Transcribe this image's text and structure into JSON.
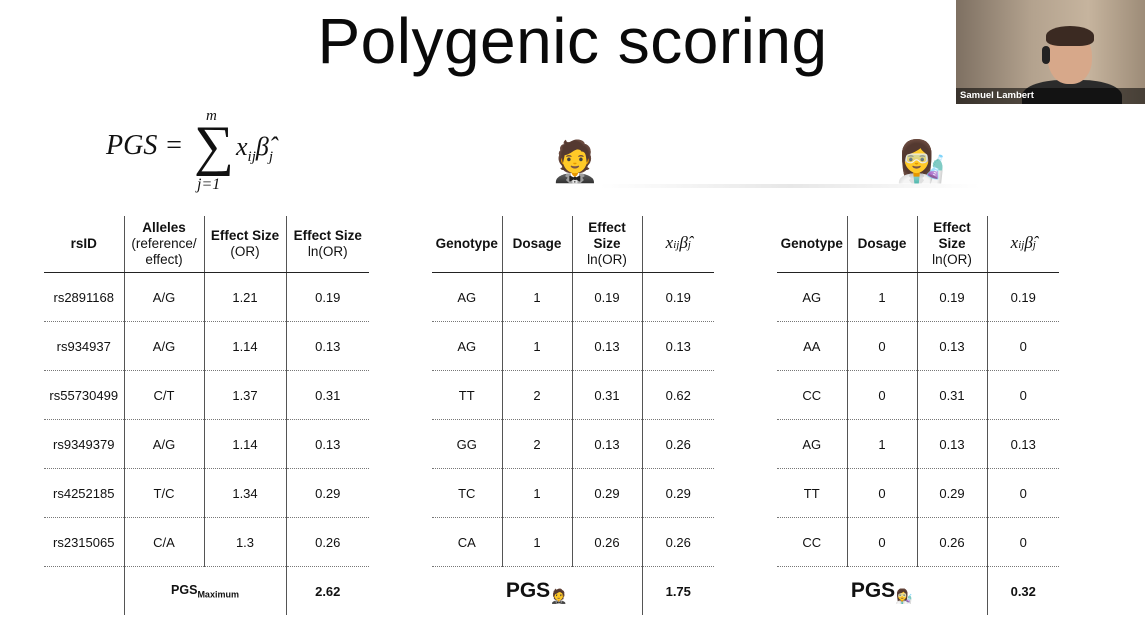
{
  "slide": {
    "title": "Polygenic scoring",
    "formula": {
      "lhs": "PGS =",
      "sum_upper": "m",
      "sum_lower": "j=1",
      "term_x": "x",
      "term_x_sub": "ij",
      "term_beta": "β̂",
      "term_beta_sub": "j"
    },
    "person1_emoji": "🤵",
    "person2_emoji": "👩‍🔬"
  },
  "webcam": {
    "participant_name": "Samuel Lambert"
  },
  "table_main": {
    "headers": [
      "rsID",
      "Alleles",
      "(reference/",
      "effect)",
      "Effect Size",
      "(OR)",
      "Effect Size",
      "ln(OR)"
    ],
    "rows": [
      [
        "rs2891168",
        "A/G",
        "1.21",
        "0.19"
      ],
      [
        "rs934937",
        "A/G",
        "1.14",
        "0.13"
      ],
      [
        "rs55730499",
        "C/T",
        "1.37",
        "0.31"
      ],
      [
        "rs9349379",
        "A/G",
        "1.14",
        "0.13"
      ],
      [
        "rs4252185",
        "T/C",
        "1.34",
        "0.29"
      ],
      [
        "rs2315065",
        "C/A",
        "1.3",
        "0.26"
      ]
    ],
    "total_label": "PGS",
    "total_label_sub": "Maximum",
    "total_value": "2.62"
  },
  "table_person1": {
    "headers": [
      "Genotype",
      "Dosage",
      "Effect",
      "Size",
      "ln(OR)"
    ],
    "rows": [
      [
        "AG",
        "1",
        "0.19",
        "0.19"
      ],
      [
        "AG",
        "1",
        "0.13",
        "0.13"
      ],
      [
        "TT",
        "2",
        "0.31",
        "0.62"
      ],
      [
        "GG",
        "2",
        "0.13",
        "0.26"
      ],
      [
        "TC",
        "1",
        "0.29",
        "0.29"
      ],
      [
        "CA",
        "1",
        "0.26",
        "0.26"
      ]
    ],
    "total_label": "PGS",
    "total_value": "1.75"
  },
  "table_person2": {
    "headers": [
      "Genotype",
      "Dosage",
      "Effect",
      "Size",
      "ln(OR)"
    ],
    "rows": [
      [
        "AG",
        "1",
        "0.19",
        "0.19"
      ],
      [
        "AA",
        "0",
        "0.13",
        "0"
      ],
      [
        "CC",
        "0",
        "0.31",
        "0"
      ],
      [
        "AG",
        "1",
        "0.13",
        "0.13"
      ],
      [
        "TT",
        "0",
        "0.29",
        "0"
      ],
      [
        "CC",
        "0",
        "0.26",
        "0"
      ]
    ],
    "total_label": "PGS",
    "total_value": "0.32"
  }
}
